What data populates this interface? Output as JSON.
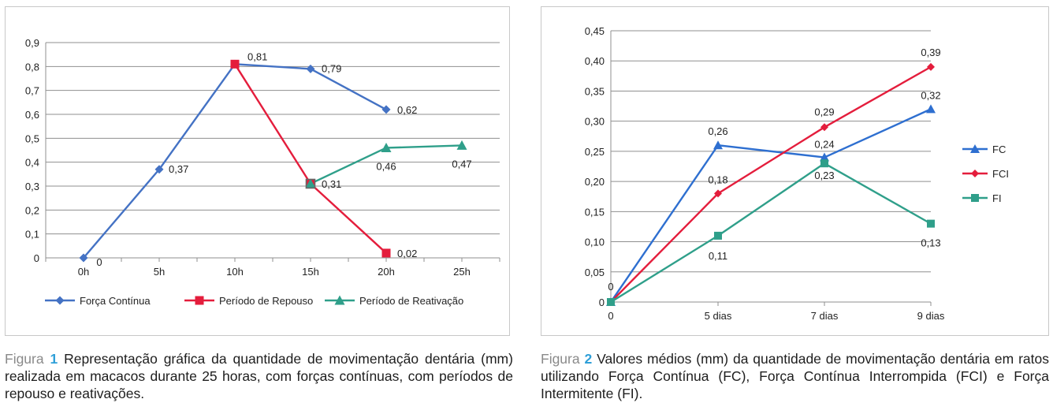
{
  "chart_data": [
    {
      "type": "line",
      "title": "",
      "xlabel": "",
      "ylabel": "",
      "categories": [
        "0h",
        "5h",
        "10h",
        "15h",
        "20h",
        "25h"
      ],
      "yticks": [
        "0",
        "0,1",
        "0,2",
        "0,3",
        "0,4",
        "0,5",
        "0,6",
        "0,7",
        "0,8",
        "0,9"
      ],
      "ylim": [
        0,
        0.9
      ],
      "grid": true,
      "legend_position": "bottom",
      "series": [
        {
          "name": "Força Contínua",
          "color": "#4472c4",
          "marker": "diamond",
          "values": [
            0,
            0.37,
            0.81,
            0.79,
            0.62,
            null
          ],
          "labels": [
            "0",
            "0,37",
            "0,81",
            "0,79",
            "0,62",
            null
          ]
        },
        {
          "name": "Período de Repouso",
          "color": "#e41d3c",
          "marker": "square",
          "values": [
            null,
            null,
            0.81,
            0.31,
            0.02,
            null
          ],
          "labels": [
            null,
            null,
            null,
            "0,31",
            "0,02",
            null
          ]
        },
        {
          "name": "Período de Reativação",
          "color": "#2f9f8a",
          "marker": "triangle",
          "values": [
            null,
            null,
            null,
            0.31,
            0.46,
            0.47
          ],
          "labels": [
            null,
            null,
            null,
            null,
            "0,46",
            "0,47"
          ]
        }
      ]
    },
    {
      "type": "line",
      "title": "",
      "xlabel": "",
      "ylabel": "",
      "categories": [
        "0",
        "5 dias",
        "7 dias",
        "9 dias"
      ],
      "yticks": [
        "0",
        "0,05",
        "0,10",
        "0,15",
        "0,20",
        "0,25",
        "0,30",
        "0,35",
        "0,40",
        "0,45"
      ],
      "ylim": [
        0,
        0.45
      ],
      "grid": true,
      "legend_position": "right",
      "series": [
        {
          "name": "FC",
          "color": "#2e6fd0",
          "marker": "triangle",
          "values": [
            0,
            0.26,
            0.24,
            0.32
          ],
          "labels": [
            "0",
            "0,26",
            "0,24",
            "0,32"
          ]
        },
        {
          "name": "FCI",
          "color": "#e41d3c",
          "marker": "diamond",
          "values": [
            0,
            0.18,
            0.29,
            0.39
          ],
          "labels": [
            null,
            "0,18",
            "0,29",
            "0,39"
          ]
        },
        {
          "name": "FI",
          "color": "#2f9f8a",
          "marker": "square",
          "values": [
            0,
            0.11,
            0.23,
            0.13
          ],
          "labels": [
            null,
            "0,11",
            "0,23",
            "0,13"
          ]
        }
      ]
    }
  ],
  "captions": [
    {
      "prefix": "Figura",
      "number": "1",
      "text": "Representação gráfica da quantidade de movimentação dentária (mm) realizada em macacos durante 25 horas, com forças contínuas, com períodos de repouso e reativações."
    },
    {
      "prefix": "Figura",
      "number": "2",
      "text": "Valores médios (mm) da quantidade de movimentação dentária em ratos utilizando Força Contínua (FC), Força Contínua Interrompida (FCI) e Força Intermitente (FI)."
    }
  ]
}
